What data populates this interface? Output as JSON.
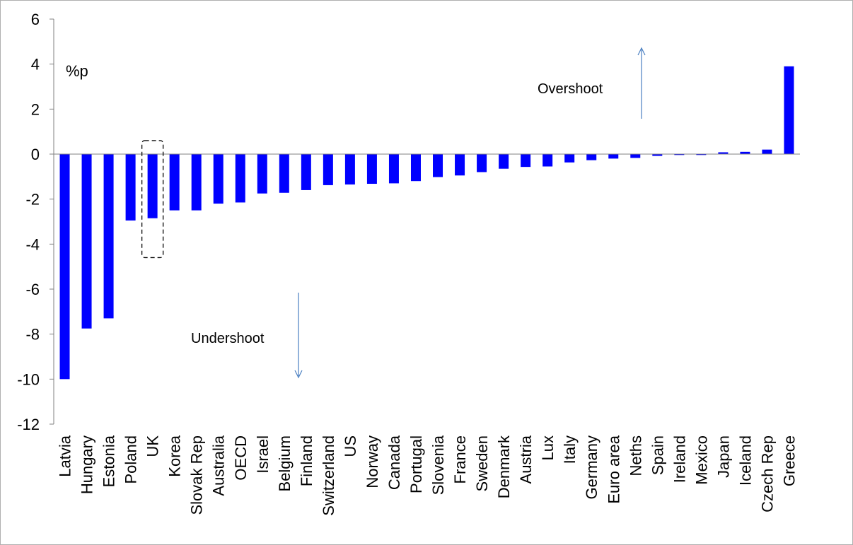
{
  "chart_data": {
    "type": "bar",
    "title": "",
    "xlabel": "",
    "ylabel": "",
    "unit_label": "%p",
    "categories": [
      "Latvia",
      "Hungary",
      "Estonia",
      "Poland",
      "UK",
      "Korea",
      "Slovak Rep",
      "Australia",
      "OECD",
      "Israel",
      "Belgium",
      "Finland",
      "Switzerland",
      "US",
      "Norway",
      "Canada",
      "Portugal",
      "Slovenia",
      "France",
      "Sweden",
      "Denmark",
      "Austria",
      "Lux",
      "Italy",
      "Germany",
      "Euro area",
      "Neths",
      "Spain",
      "Ireland",
      "Mexico",
      "Japan",
      "Iceland",
      "Czech Rep",
      "Greece"
    ],
    "values": [
      -10.0,
      -7.75,
      -7.3,
      -2.95,
      -2.85,
      -2.5,
      -2.5,
      -2.2,
      -2.15,
      -1.75,
      -1.72,
      -1.6,
      -1.38,
      -1.35,
      -1.32,
      -1.3,
      -1.2,
      -1.02,
      -0.95,
      -0.8,
      -0.65,
      -0.57,
      -0.55,
      -0.37,
      -0.27,
      -0.2,
      -0.17,
      -0.08,
      -0.04,
      -0.04,
      0.08,
      0.1,
      0.2,
      3.9
    ],
    "ylim": [
      -12,
      6
    ],
    "yticks": [
      6,
      4,
      2,
      0,
      -2,
      -4,
      -6,
      -8,
      -10,
      -12
    ],
    "ytick_labels": [
      "6",
      "4",
      "2",
      "0",
      "-2",
      "-4",
      "-6",
      "-8",
      "-10",
      "-12"
    ],
    "grid": false,
    "bar_color": "#0000ff",
    "highlighted_category": "UK",
    "annotations": {
      "overshoot": "Overshoot",
      "undershoot": "Undershoot"
    },
    "arrow_color": "#4a7fc1"
  }
}
